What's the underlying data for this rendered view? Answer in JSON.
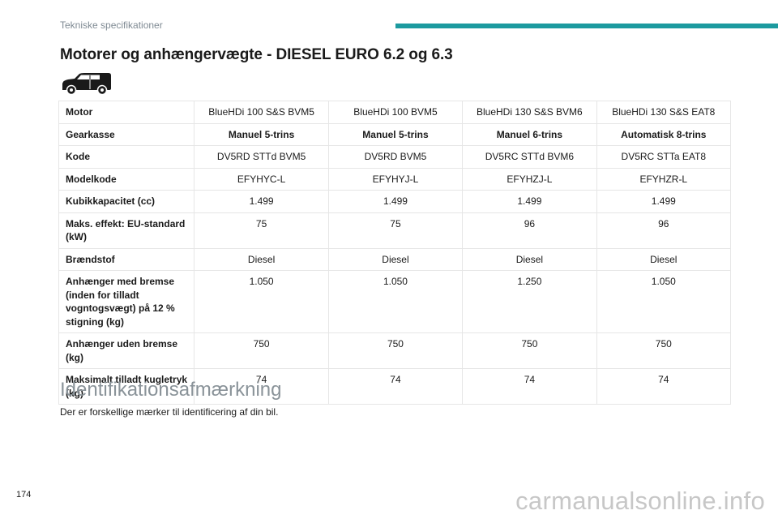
{
  "header": {
    "running_head": "Tekniske specifikationer",
    "accent_color": "#1c9a9f"
  },
  "title": "Motorer og anhængervægte - DIESEL EURO 6.2 og 6.3",
  "icon": "van-icon",
  "table": {
    "rows": [
      {
        "label": "Motor",
        "bold": false,
        "values": [
          "BlueHDi 100 S&S BVM5",
          "BlueHDi 100 BVM5",
          "BlueHDi 130 S&S BVM6",
          "BlueHDi 130 S&S EAT8"
        ]
      },
      {
        "label": "Gearkasse",
        "bold": true,
        "values": [
          "Manuel 5-trins",
          "Manuel 5-trins",
          "Manuel 6-trins",
          "Automatisk 8-trins"
        ]
      },
      {
        "label": "Kode",
        "bold": false,
        "values": [
          "DV5RD STTd BVM5",
          "DV5RD BVM5",
          "DV5RC STTd BVM6",
          "DV5RC STTa EAT8"
        ]
      },
      {
        "label": "Modelkode",
        "bold": false,
        "values": [
          "EFYHYC-L",
          "EFYHYJ-L",
          "EFYHZJ-L",
          "EFYHZR-L"
        ]
      },
      {
        "label": "Kubikkapacitet (cc)",
        "bold": false,
        "values": [
          "1.499",
          "1.499",
          "1.499",
          "1.499"
        ]
      },
      {
        "label": "Maks. effekt: EU-standard (kW)",
        "bold": false,
        "values": [
          "75",
          "75",
          "96",
          "96"
        ]
      },
      {
        "label": "Brændstof",
        "bold": false,
        "values": [
          "Diesel",
          "Diesel",
          "Diesel",
          "Diesel"
        ]
      },
      {
        "label": "Anhænger med bremse (inden for tilladt vogntogsvægt) på 12 % stigning (kg)",
        "bold": false,
        "values": [
          "1.050",
          "1.050",
          "1.250",
          "1.050"
        ]
      },
      {
        "label": "Anhænger uden bremse (kg)",
        "bold": false,
        "values": [
          "750",
          "750",
          "750",
          "750"
        ]
      },
      {
        "label": "Maksimalt tilladt kugletryk (kg)",
        "bold": false,
        "values": [
          "74",
          "74",
          "74",
          "74"
        ]
      }
    ]
  },
  "section": {
    "title": "Identifikationsafmærkning",
    "body": "Der er forskellige mærker til identificering af din bil."
  },
  "page_number": "174",
  "watermark": "carmanualsonline.info"
}
